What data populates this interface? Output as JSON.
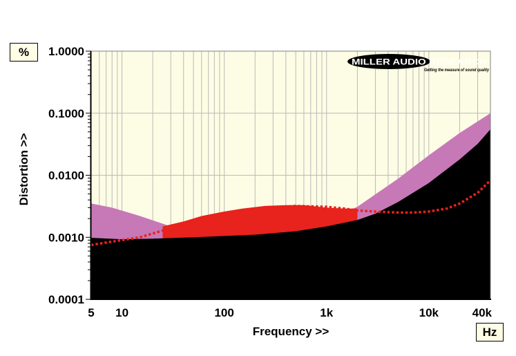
{
  "colors": {
    "plot_background": "#fdfde5",
    "grid": "#b9b9b9",
    "black_series": "#000000",
    "pink_series": "#c778b7",
    "red_series": "#e8221c"
  },
  "logo": {
    "main_text": "MILLER AUDIO RESEARCH",
    "tagline": "Getting the measure of sound quality"
  },
  "chart_data": {
    "type": "area",
    "x_scale": "log",
    "y_scale": "log",
    "xlabel": "Frequency >>",
    "ylabel": "Distortion >>",
    "x_unit": "Hz",
    "y_unit": "%",
    "xlim": [
      5,
      40000
    ],
    "ylim": [
      0.0001,
      1.0
    ],
    "grid": true,
    "x_ticks": [
      {
        "value": 5,
        "label": "5"
      },
      {
        "value": 10,
        "label": "10"
      },
      {
        "value": 100,
        "label": "100"
      },
      {
        "value": 1000,
        "label": "1k"
      },
      {
        "value": 10000,
        "label": "10k"
      },
      {
        "value": 40000,
        "label": "40k"
      }
    ],
    "y_ticks": [
      {
        "value": 1.0,
        "label": "1.0000"
      },
      {
        "value": 0.1,
        "label": "0.1000"
      },
      {
        "value": 0.01,
        "label": "0.0100"
      },
      {
        "value": 0.001,
        "label": "0.0010"
      },
      {
        "value": 0.0001,
        "label": "0.0001"
      }
    ],
    "series": [
      {
        "color": "#c778b7",
        "style": "filled-area",
        "x": [
          5,
          8,
          15,
          30,
          60,
          100,
          200,
          500,
          1000,
          2000,
          5000,
          10000,
          20000,
          40000
        ],
        "y": [
          0.0035,
          0.003,
          0.0022,
          0.0015,
          0.00118,
          0.00108,
          0.00108,
          0.00135,
          0.0019,
          0.0031,
          0.0088,
          0.021,
          0.048,
          0.1
        ]
      },
      {
        "color": "#e8221c",
        "style": "filled-area",
        "x": [
          25,
          40,
          60,
          100,
          150,
          250,
          400,
          600,
          1000,
          1500,
          2000
        ],
        "y": [
          0.0015,
          0.0018,
          0.0022,
          0.0026,
          0.0029,
          0.0032,
          0.0033,
          0.0033,
          0.003,
          0.0029,
          0.0029
        ]
      },
      {
        "color": "#000000",
        "style": "filled-area",
        "x": [
          5,
          10,
          20,
          50,
          100,
          200,
          500,
          1000,
          2000,
          3000,
          5000,
          10000,
          20000,
          30000,
          40000
        ],
        "y": [
          0.00098,
          0.00093,
          0.00095,
          0.001,
          0.00105,
          0.0011,
          0.00125,
          0.0015,
          0.0019,
          0.0024,
          0.0037,
          0.0075,
          0.018,
          0.032,
          0.055
        ]
      },
      {
        "color": "#e8221c",
        "style": "dotted-line",
        "x": [
          5,
          6,
          8,
          10,
          15,
          20,
          30,
          50,
          100,
          200,
          500,
          1000,
          1500,
          2000,
          3000,
          5000,
          7000,
          10000,
          15000,
          20000,
          30000,
          40000
        ],
        "y": [
          0.00075,
          0.00079,
          0.00085,
          0.0009,
          0.001,
          0.00115,
          0.0014,
          0.0018,
          0.0024,
          0.0029,
          0.0032,
          0.0031,
          0.0029,
          0.0027,
          0.0026,
          0.0025,
          0.0025,
          0.0026,
          0.0029,
          0.0035,
          0.0052,
          0.0083
        ]
      }
    ]
  }
}
